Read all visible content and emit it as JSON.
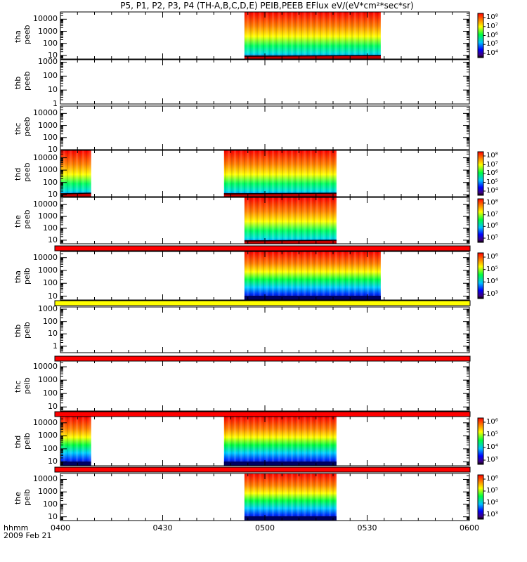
{
  "title": "P5, P1, P2, P3, P4 (TH-A,B,C,D,E) PEIB,PEEB EFlux eV/(eV*cm²*sec*sr)",
  "time_label": "hhmm",
  "date_label": "2009 Feb 21",
  "chart_data": {
    "type": "heatmap",
    "title": "P5, P1, P2, P3, P4 (TH-A,B,C,D,E) PEIB,PEEB EFlux eV/(eV*cm²*sec*sr)",
    "x": {
      "label": "hhmm",
      "range_minutes": [
        0,
        120
      ],
      "ticks": [
        0,
        30,
        60,
        90,
        120
      ],
      "tick_labels": [
        "0400",
        "0430",
        "0500",
        "0530",
        "0600"
      ]
    },
    "panels": [
      {
        "probe": "tha",
        "product": "peeb",
        "ylim": [
          5,
          40000
        ],
        "yticks": [
          10,
          100,
          1000,
          10000
        ],
        "ytick_labels": [
          "10",
          "100",
          "1000",
          "10000"
        ],
        "intervals": [
          [
            54,
            94
          ]
        ],
        "colorbar": {
          "ticks": [
            "10⁴",
            "10⁵",
            "10⁶",
            "10⁷",
            "10⁸"
          ]
        },
        "style": "electron"
      },
      {
        "probe": "thb",
        "product": "peeb",
        "ylim": [
          1,
          1500
        ],
        "yticks": [
          1,
          10,
          100,
          1000
        ],
        "ytick_labels": [
          "1",
          "10",
          "100",
          "1000"
        ],
        "intervals": [],
        "style": "empty"
      },
      {
        "probe": "thc",
        "product": "peeb",
        "ylim": [
          10,
          40000
        ],
        "yticks": [
          10,
          100,
          1000,
          10000
        ],
        "ytick_labels": [
          "10",
          "100",
          "1000",
          "10000"
        ],
        "intervals": [],
        "style": "empty"
      },
      {
        "probe": "thd",
        "product": "peeb",
        "ylim": [
          7,
          40000
        ],
        "yticks": [
          10,
          100,
          1000,
          10000
        ],
        "ytick_labels": [
          "10",
          "100",
          "1000",
          "10000"
        ],
        "intervals": [
          [
            0,
            9
          ],
          [
            48,
            81
          ]
        ],
        "colorbar": {
          "ticks": [
            "10⁴",
            "10⁵",
            "10⁶",
            "10⁷",
            "10⁸"
          ]
        },
        "style": "electron"
      },
      {
        "probe": "the",
        "product": "peeb",
        "ylim": [
          5,
          40000
        ],
        "yticks": [
          10,
          100,
          1000,
          10000
        ],
        "ytick_labels": [
          "10",
          "100",
          "1000",
          "10000"
        ],
        "intervals": [
          [
            54,
            81
          ]
        ],
        "colorbar": {
          "ticks": [
            "10⁵",
            "10⁶",
            "10⁷",
            "10⁸"
          ]
        },
        "style": "electron"
      },
      {
        "probe": "tha",
        "product": "peib",
        "ylim": [
          5,
          30000
        ],
        "yticks": [
          10,
          100,
          1000,
          10000
        ],
        "ytick_labels": [
          "10",
          "100",
          "1000",
          "10000"
        ],
        "intervals": [
          [
            54,
            94
          ]
        ],
        "colorbar": {
          "ticks": [
            "10³",
            "10⁴",
            "10⁵",
            "10⁶"
          ]
        },
        "style": "ion"
      },
      {
        "probe": "thb",
        "product": "peib",
        "ylim": [
          0.3,
          1500
        ],
        "yticks": [
          1,
          10,
          100,
          1000
        ],
        "ytick_labels": [
          "1",
          "10",
          "100",
          "1000"
        ],
        "intervals": [],
        "style": "empty"
      },
      {
        "probe": "thc",
        "product": "peib",
        "ylim": [
          5,
          30000
        ],
        "yticks": [
          10,
          100,
          1000,
          10000
        ],
        "ytick_labels": [
          "10",
          "100",
          "1000",
          "10000"
        ],
        "intervals": [],
        "style": "empty"
      },
      {
        "probe": "thd",
        "product": "peib",
        "ylim": [
          5,
          30000
        ],
        "yticks": [
          10,
          100,
          1000,
          10000
        ],
        "ytick_labels": [
          "10",
          "100",
          "1000",
          "10000"
        ],
        "intervals": [
          [
            0,
            9
          ],
          [
            48,
            81
          ]
        ],
        "colorbar": {
          "ticks": [
            "10³",
            "10⁴",
            "10⁵",
            "10⁶"
          ]
        },
        "style": "ion"
      },
      {
        "probe": "the",
        "product": "peib",
        "ylim": [
          5,
          30000
        ],
        "yticks": [
          10,
          100,
          1000,
          10000
        ],
        "ytick_labels": [
          "10",
          "100",
          "1000",
          "10000"
        ],
        "intervals": [
          [
            54,
            81
          ]
        ],
        "colorbar": {
          "ticks": [
            "10³",
            "10⁴",
            "10⁵",
            "10⁶"
          ]
        },
        "style": "ion"
      }
    ],
    "separator_bars": [
      {
        "after_panel": 4,
        "color": "#ff0000"
      },
      {
        "after_panel": 5,
        "color": "#ffff00"
      },
      {
        "after_panel": 6,
        "color": "#ff0000"
      },
      {
        "after_panel": 7,
        "color": "#ff0000"
      },
      {
        "after_panel": 8,
        "color": "#ff0000"
      }
    ]
  }
}
